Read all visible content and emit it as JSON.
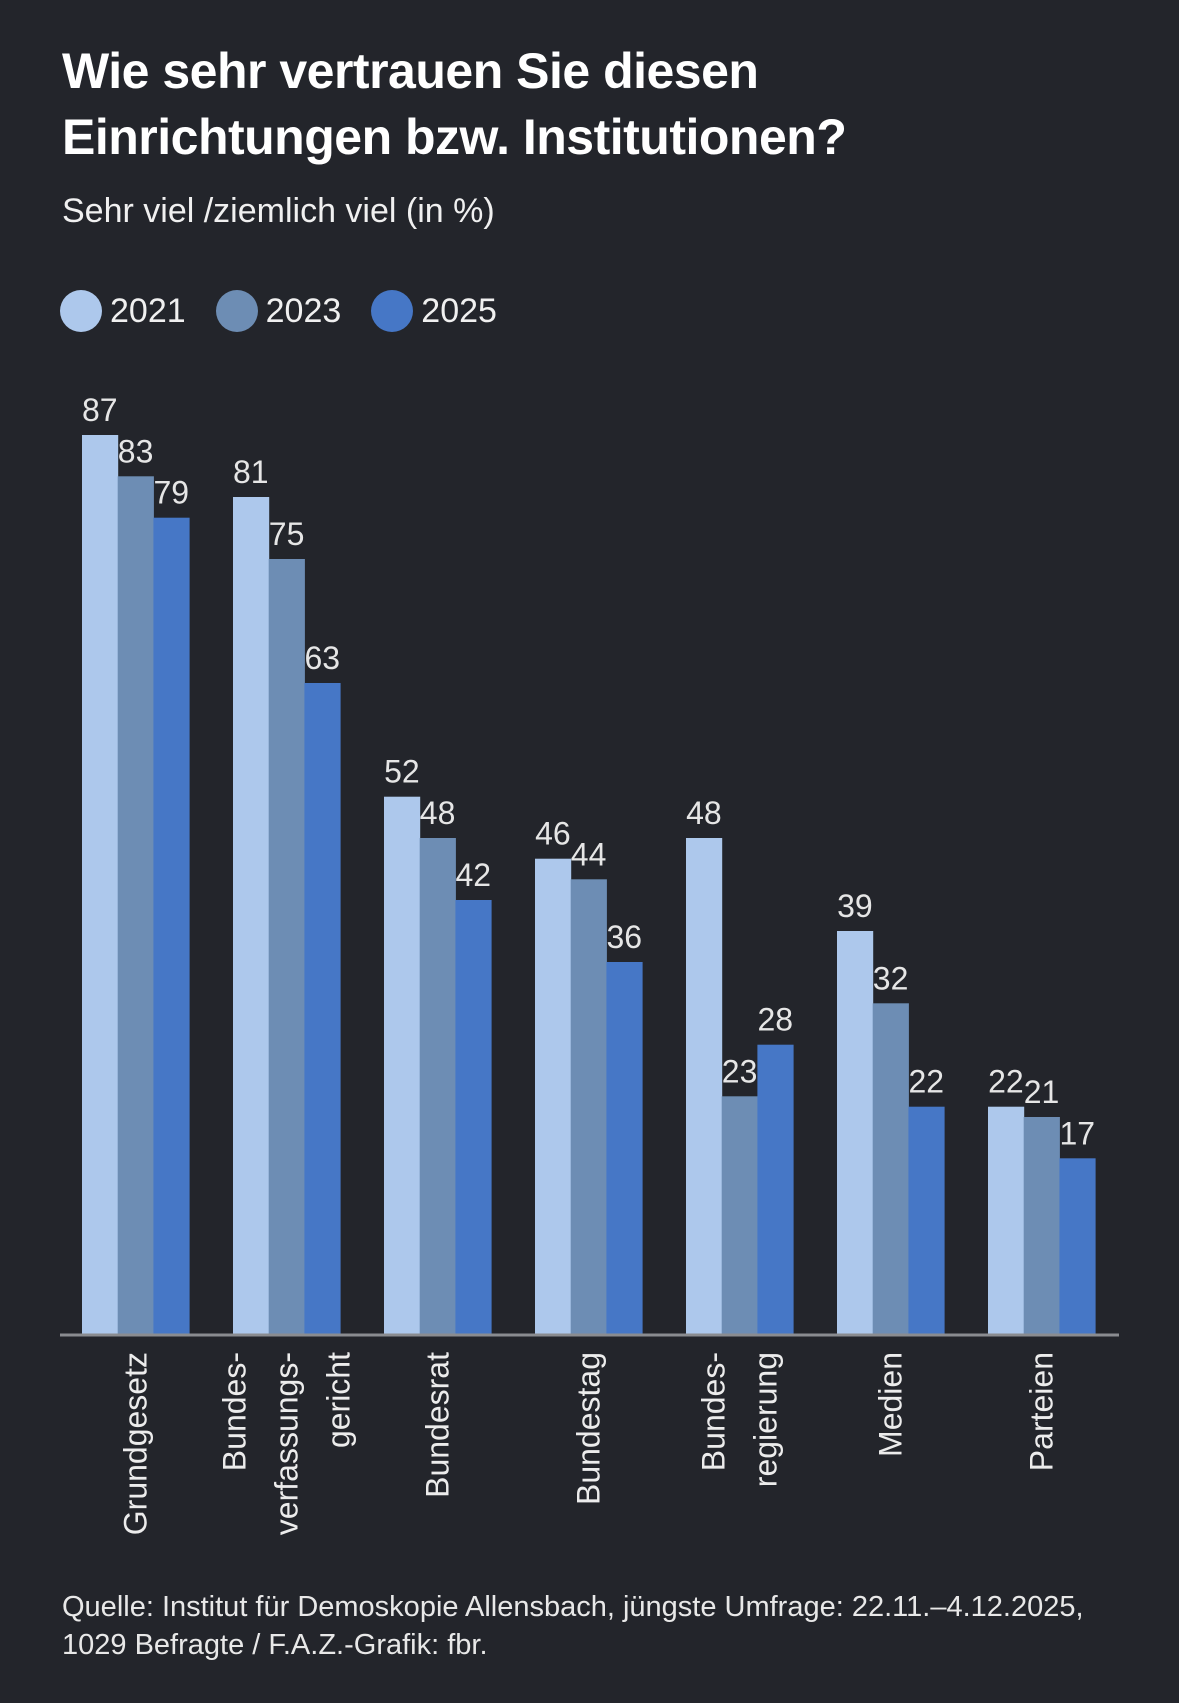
{
  "title_lines": [
    "Wie sehr vertrauen Sie diesen",
    "Einrichtungen bzw. Institutionen?"
  ],
  "subtitle": "Sehr viel /ziemlich viel (in %)",
  "footer_lines": [
    "Quelle: Institut für Demoskopie Allensbach, jüngste Umfrage: 22.11.–4.12.2025,",
    "1029 Befragte / F.A.Z.-Grafik: fbr."
  ],
  "chart_data": {
    "type": "bar",
    "title": "Wie sehr vertrauen Sie diesen Einrichtungen bzw. Institutionen?",
    "subtitle": "Sehr viel /ziemlich viel (in %)",
    "xlabel": "",
    "ylabel": "",
    "ylim": [
      0,
      87
    ],
    "grid": false,
    "legend_position": "top-left",
    "categories": [
      [
        "Grundgesetz"
      ],
      [
        "Bundes-",
        "verfassungs-",
        "gericht"
      ],
      [
        "Bundesrat"
      ],
      [
        "Bundestag"
      ],
      [
        "Bundes-",
        "regierung"
      ],
      [
        "Medien"
      ],
      [
        "Parteien"
      ]
    ],
    "series": [
      {
        "name": "2021",
        "color": "#adc8ec",
        "values": [
          87,
          81,
          52,
          46,
          48,
          39,
          22
        ]
      },
      {
        "name": "2023",
        "color": "#6d8db4",
        "values": [
          83,
          75,
          48,
          44,
          23,
          32,
          21
        ]
      },
      {
        "name": "2025",
        "color": "#4677c6",
        "values": [
          79,
          63,
          42,
          36,
          28,
          22,
          17
        ]
      }
    ],
    "axis_color": "#8a8c90",
    "label_color": "#e6e6e6"
  }
}
